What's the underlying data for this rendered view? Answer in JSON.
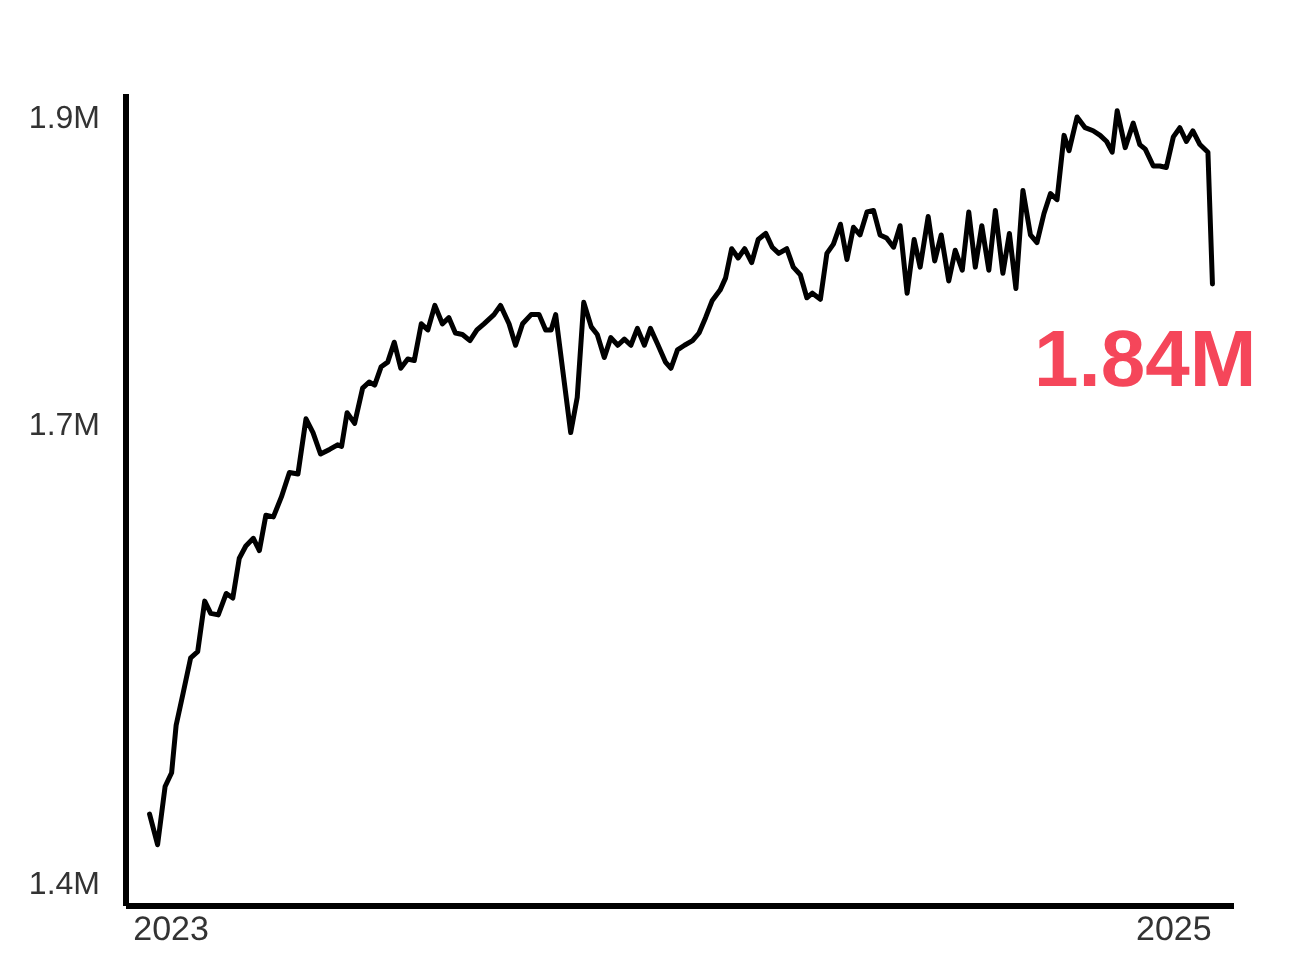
{
  "chart_data": {
    "type": "line",
    "color": "#000000",
    "x": [
      2022.957,
      2022.973,
      2022.988,
      2023.001,
      2023.01,
      2023.024,
      2023.039,
      2023.053,
      2023.067,
      2023.079,
      2023.094,
      2023.11,
      2023.123,
      2023.136,
      2023.149,
      2023.164,
      2023.176,
      2023.189,
      2023.204,
      2023.22,
      2023.236,
      2023.253,
      2023.269,
      2023.283,
      2023.298,
      2023.316,
      2023.332,
      2023.34,
      2023.351,
      2023.366,
      2023.382,
      2023.395,
      2023.406,
      2023.419,
      2023.432,
      2023.445,
      2023.458,
      2023.472,
      2023.485,
      2023.499,
      2023.512,
      2023.526,
      2023.541,
      2023.554,
      2023.567,
      2023.581,
      2023.596,
      2023.61,
      2023.624,
      2023.644,
      2023.657,
      2023.674,
      2023.687,
      2023.701,
      2023.718,
      2023.734,
      2023.747,
      2023.758,
      2023.767,
      2023.781,
      2023.797,
      2023.81,
      2023.823,
      2023.838,
      2023.85,
      2023.864,
      2023.877,
      2023.891,
      2023.904,
      2023.917,
      2023.93,
      2023.944,
      2023.956,
      2023.97,
      2023.986,
      2023.997,
      2024.01,
      2024.024,
      2024.04,
      2024.053,
      2024.066,
      2024.079,
      2024.095,
      2024.106,
      2024.118,
      2024.131,
      2024.144,
      2024.158,
      2024.171,
      2024.186,
      2024.199,
      2024.212,
      2024.228,
      2024.241,
      2024.255,
      2024.268,
      2024.279,
      2024.295,
      2024.308,
      2024.321,
      2024.335,
      2024.348,
      2024.361,
      2024.374,
      2024.388,
      2024.401,
      2024.414,
      2024.427,
      2024.441,
      2024.454,
      2024.468,
      2024.482,
      2024.494,
      2024.51,
      2024.523,
      2024.536,
      2024.551,
      2024.564,
      2024.578,
      2024.591,
      2024.604,
      2024.617,
      2024.631,
      2024.644,
      2024.659,
      2024.672,
      2024.685,
      2024.699,
      2024.714,
      2024.727,
      2024.741,
      2024.754,
      2024.767,
      2024.781,
      2024.791,
      2024.807,
      2024.823,
      2024.839,
      2024.853,
      2024.866,
      2024.877,
      2024.887,
      2024.903,
      2024.919,
      2024.932,
      2024.943,
      2024.959,
      2024.972,
      2024.985,
      2024.999,
      2025.012,
      2025.025,
      2025.038,
      2025.052,
      2025.068,
      2025.077
    ],
    "values": [
      1.445,
      1.425,
      1.463,
      1.472,
      1.503,
      1.524,
      1.547,
      1.551,
      1.584,
      1.576,
      1.575,
      1.589,
      1.586,
      1.612,
      1.62,
      1.625,
      1.617,
      1.64,
      1.639,
      1.652,
      1.668,
      1.667,
      1.703,
      1.694,
      1.68,
      1.683,
      1.686,
      1.685,
      1.707,
      1.7,
      1.723,
      1.727,
      1.725,
      1.737,
      1.74,
      1.753,
      1.736,
      1.742,
      1.741,
      1.765,
      1.761,
      1.777,
      1.765,
      1.769,
      1.759,
      1.758,
      1.754,
      1.761,
      1.765,
      1.771,
      1.777,
      1.765,
      1.751,
      1.765,
      1.771,
      1.771,
      1.761,
      1.761,
      1.771,
      1.735,
      1.694,
      1.717,
      1.779,
      1.763,
      1.758,
      1.743,
      1.756,
      1.751,
      1.755,
      1.751,
      1.762,
      1.751,
      1.762,
      1.752,
      1.74,
      1.736,
      1.748,
      1.751,
      1.754,
      1.759,
      1.769,
      1.78,
      1.787,
      1.795,
      1.814,
      1.808,
      1.814,
      1.805,
      1.82,
      1.824,
      1.815,
      1.811,
      1.814,
      1.802,
      1.797,
      1.782,
      1.785,
      1.781,
      1.811,
      1.817,
      1.83,
      1.807,
      1.828,
      1.823,
      1.838,
      1.839,
      1.823,
      1.821,
      1.815,
      1.829,
      1.785,
      1.82,
      1.802,
      1.835,
      1.806,
      1.823,
      1.793,
      1.813,
      1.8,
      1.838,
      1.802,
      1.829,
      1.8,
      1.839,
      1.798,
      1.824,
      1.788,
      1.852,
      1.823,
      1.818,
      1.837,
      1.85,
      1.846,
      1.888,
      1.878,
      1.9,
      1.893,
      1.891,
      1.888,
      1.884,
      1.877,
      1.904,
      1.88,
      1.896,
      1.882,
      1.879,
      1.868,
      1.868,
      1.867,
      1.887,
      1.893,
      1.884,
      1.891,
      1.882,
      1.877,
      1.791
    ],
    "xlim": [
      2022.91,
      2025.12
    ],
    "xticks": [
      2023,
      2025
    ],
    "ylim": [
      1.385,
      1.915
    ],
    "yticks": [
      {
        "value": 1.4,
        "label": "1.4M"
      },
      {
        "value": 1.7,
        "label": "1.7M"
      },
      {
        "value": 1.9,
        "label": "1.9M"
      }
    ],
    "annotations": [
      "1.84M"
    ]
  }
}
